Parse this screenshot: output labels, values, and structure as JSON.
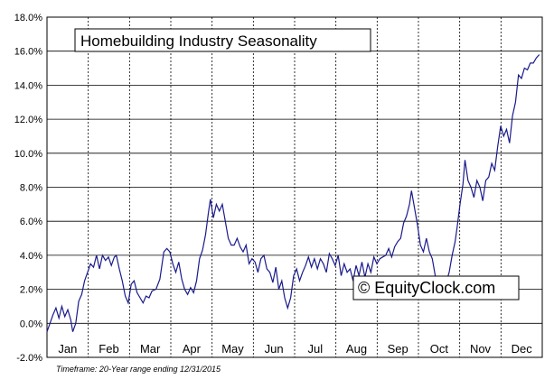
{
  "chart_data": {
    "type": "line",
    "title": "Homebuilding Industry Seasonality",
    "xlabel": "",
    "ylabel": "",
    "ylim": [
      -2.0,
      18.0
    ],
    "y_ticks": [
      "-2.0%",
      "0.0%",
      "2.0%",
      "4.0%",
      "6.0%",
      "8.0%",
      "10.0%",
      "12.0%",
      "14.0%",
      "16.0%",
      "18.0%"
    ],
    "y_tick_values": [
      -2,
      0,
      2,
      4,
      6,
      8,
      10,
      12,
      14,
      16,
      18
    ],
    "months": [
      "Jan",
      "Feb",
      "Mar",
      "Apr",
      "May",
      "Jun",
      "Jul",
      "Aug",
      "Sep",
      "Oct",
      "Nov",
      "Dec"
    ],
    "grid": true,
    "line_color": "#1a1a8c",
    "series": [
      {
        "x_unit": "fraction of year",
        "points": [
          [
            0.0,
            -0.5
          ],
          [
            0.006,
            0.0
          ],
          [
            0.012,
            0.5
          ],
          [
            0.018,
            0.9
          ],
          [
            0.024,
            0.3
          ],
          [
            0.03,
            1.0
          ],
          [
            0.036,
            0.4
          ],
          [
            0.042,
            0.8
          ],
          [
            0.048,
            0.2
          ],
          [
            0.052,
            -0.5
          ],
          [
            0.058,
            0.0
          ],
          [
            0.064,
            1.3
          ],
          [
            0.07,
            1.7
          ],
          [
            0.076,
            2.5
          ],
          [
            0.082,
            3.0
          ],
          [
            0.088,
            3.5
          ],
          [
            0.094,
            3.3
          ],
          [
            0.1,
            4.0
          ],
          [
            0.106,
            3.2
          ],
          [
            0.112,
            4.0
          ],
          [
            0.118,
            3.7
          ],
          [
            0.124,
            3.9
          ],
          [
            0.13,
            3.4
          ],
          [
            0.136,
            3.9
          ],
          [
            0.14,
            4.0
          ],
          [
            0.146,
            3.2
          ],
          [
            0.152,
            2.5
          ],
          [
            0.158,
            1.6
          ],
          [
            0.164,
            1.2
          ],
          [
            0.17,
            2.3
          ],
          [
            0.176,
            2.5
          ],
          [
            0.182,
            1.8
          ],
          [
            0.188,
            1.5
          ],
          [
            0.194,
            1.2
          ],
          [
            0.2,
            1.6
          ],
          [
            0.206,
            1.5
          ],
          [
            0.212,
            1.9
          ],
          [
            0.22,
            2.0
          ],
          [
            0.228,
            2.6
          ],
          [
            0.236,
            4.2
          ],
          [
            0.242,
            4.4
          ],
          [
            0.248,
            4.2
          ],
          [
            0.254,
            3.5
          ],
          [
            0.26,
            3.0
          ],
          [
            0.266,
            3.6
          ],
          [
            0.272,
            2.6
          ],
          [
            0.278,
            2.0
          ],
          [
            0.284,
            1.7
          ],
          [
            0.29,
            2.1
          ],
          [
            0.296,
            1.8
          ],
          [
            0.302,
            2.5
          ],
          [
            0.308,
            3.8
          ],
          [
            0.314,
            4.3
          ],
          [
            0.32,
            5.2
          ],
          [
            0.326,
            6.5
          ],
          [
            0.33,
            7.3
          ],
          [
            0.336,
            6.2
          ],
          [
            0.342,
            7.0
          ],
          [
            0.348,
            6.6
          ],
          [
            0.354,
            7.0
          ],
          [
            0.36,
            6.0
          ],
          [
            0.366,
            5.0
          ],
          [
            0.372,
            4.6
          ],
          [
            0.378,
            4.6
          ],
          [
            0.384,
            5.0
          ],
          [
            0.39,
            4.5
          ],
          [
            0.396,
            4.2
          ],
          [
            0.402,
            4.6
          ],
          [
            0.408,
            3.5
          ],
          [
            0.414,
            3.8
          ],
          [
            0.42,
            3.6
          ],
          [
            0.426,
            3.0
          ],
          [
            0.432,
            3.8
          ],
          [
            0.438,
            4.0
          ],
          [
            0.444,
            3.2
          ],
          [
            0.45,
            3.0
          ],
          [
            0.456,
            2.4
          ],
          [
            0.462,
            3.3
          ],
          [
            0.468,
            2.0
          ],
          [
            0.474,
            2.5
          ],
          [
            0.48,
            1.5
          ],
          [
            0.486,
            0.9
          ],
          [
            0.492,
            1.5
          ],
          [
            0.498,
            2.8
          ],
          [
            0.504,
            3.2
          ],
          [
            0.51,
            2.5
          ],
          [
            0.516,
            3.0
          ],
          [
            0.522,
            3.4
          ],
          [
            0.528,
            3.9
          ],
          [
            0.534,
            3.3
          ],
          [
            0.54,
            3.8
          ],
          [
            0.546,
            3.2
          ],
          [
            0.552,
            3.8
          ],
          [
            0.558,
            3.5
          ],
          [
            0.564,
            3.0
          ],
          [
            0.57,
            4.1
          ],
          [
            0.576,
            3.8
          ],
          [
            0.582,
            3.4
          ],
          [
            0.588,
            4.0
          ],
          [
            0.594,
            2.8
          ],
          [
            0.6,
            3.5
          ],
          [
            0.606,
            3.0
          ],
          [
            0.612,
            3.2
          ],
          [
            0.618,
            2.5
          ],
          [
            0.624,
            3.4
          ],
          [
            0.63,
            2.8
          ],
          [
            0.636,
            3.6
          ],
          [
            0.642,
            2.7
          ],
          [
            0.648,
            3.5
          ],
          [
            0.654,
            3.0
          ],
          [
            0.66,
            3.9
          ],
          [
            0.666,
            3.5
          ],
          [
            0.672,
            3.8
          ],
          [
            0.678,
            3.9
          ],
          [
            0.684,
            4.0
          ],
          [
            0.69,
            4.4
          ],
          [
            0.696,
            3.9
          ],
          [
            0.702,
            4.5
          ],
          [
            0.708,
            4.8
          ],
          [
            0.714,
            5.0
          ],
          [
            0.72,
            5.9
          ],
          [
            0.726,
            6.3
          ],
          [
            0.732,
            7.0
          ],
          [
            0.736,
            7.8
          ],
          [
            0.742,
            6.8
          ],
          [
            0.748,
            5.8
          ],
          [
            0.754,
            4.6
          ],
          [
            0.76,
            4.2
          ],
          [
            0.766,
            5.0
          ],
          [
            0.772,
            4.2
          ],
          [
            0.778,
            3.8
          ],
          [
            0.784,
            2.8
          ],
          [
            0.79,
            2.5
          ],
          [
            0.798,
            2.6
          ],
          [
            0.806,
            2.4
          ],
          [
            0.812,
            3.0
          ],
          [
            0.818,
            4.0
          ],
          [
            0.824,
            4.8
          ],
          [
            0.828,
            5.6
          ],
          [
            0.834,
            7.0
          ],
          [
            0.84,
            8.2
          ],
          [
            0.844,
            9.6
          ],
          [
            0.85,
            8.4
          ],
          [
            0.856,
            8.0
          ],
          [
            0.862,
            7.4
          ],
          [
            0.868,
            8.4
          ],
          [
            0.874,
            8.0
          ],
          [
            0.88,
            7.2
          ],
          [
            0.886,
            8.4
          ],
          [
            0.892,
            8.6
          ],
          [
            0.898,
            9.4
          ],
          [
            0.904,
            9.0
          ],
          [
            0.91,
            10.4
          ],
          [
            0.916,
            11.6
          ],
          [
            0.922,
            11.0
          ],
          [
            0.928,
            11.4
          ],
          [
            0.934,
            10.6
          ],
          [
            0.94,
            12.2
          ],
          [
            0.946,
            13.0
          ],
          [
            0.952,
            14.6
          ],
          [
            0.958,
            14.4
          ],
          [
            0.964,
            15.0
          ],
          [
            0.97,
            14.9
          ],
          [
            0.976,
            15.3
          ],
          [
            0.982,
            15.3
          ],
          [
            0.988,
            15.6
          ],
          [
            0.994,
            15.8
          ]
        ]
      }
    ],
    "watermark": "© EquityClock.com",
    "footnote": "Timeframe: 20-Year range ending 12/31/2015"
  }
}
